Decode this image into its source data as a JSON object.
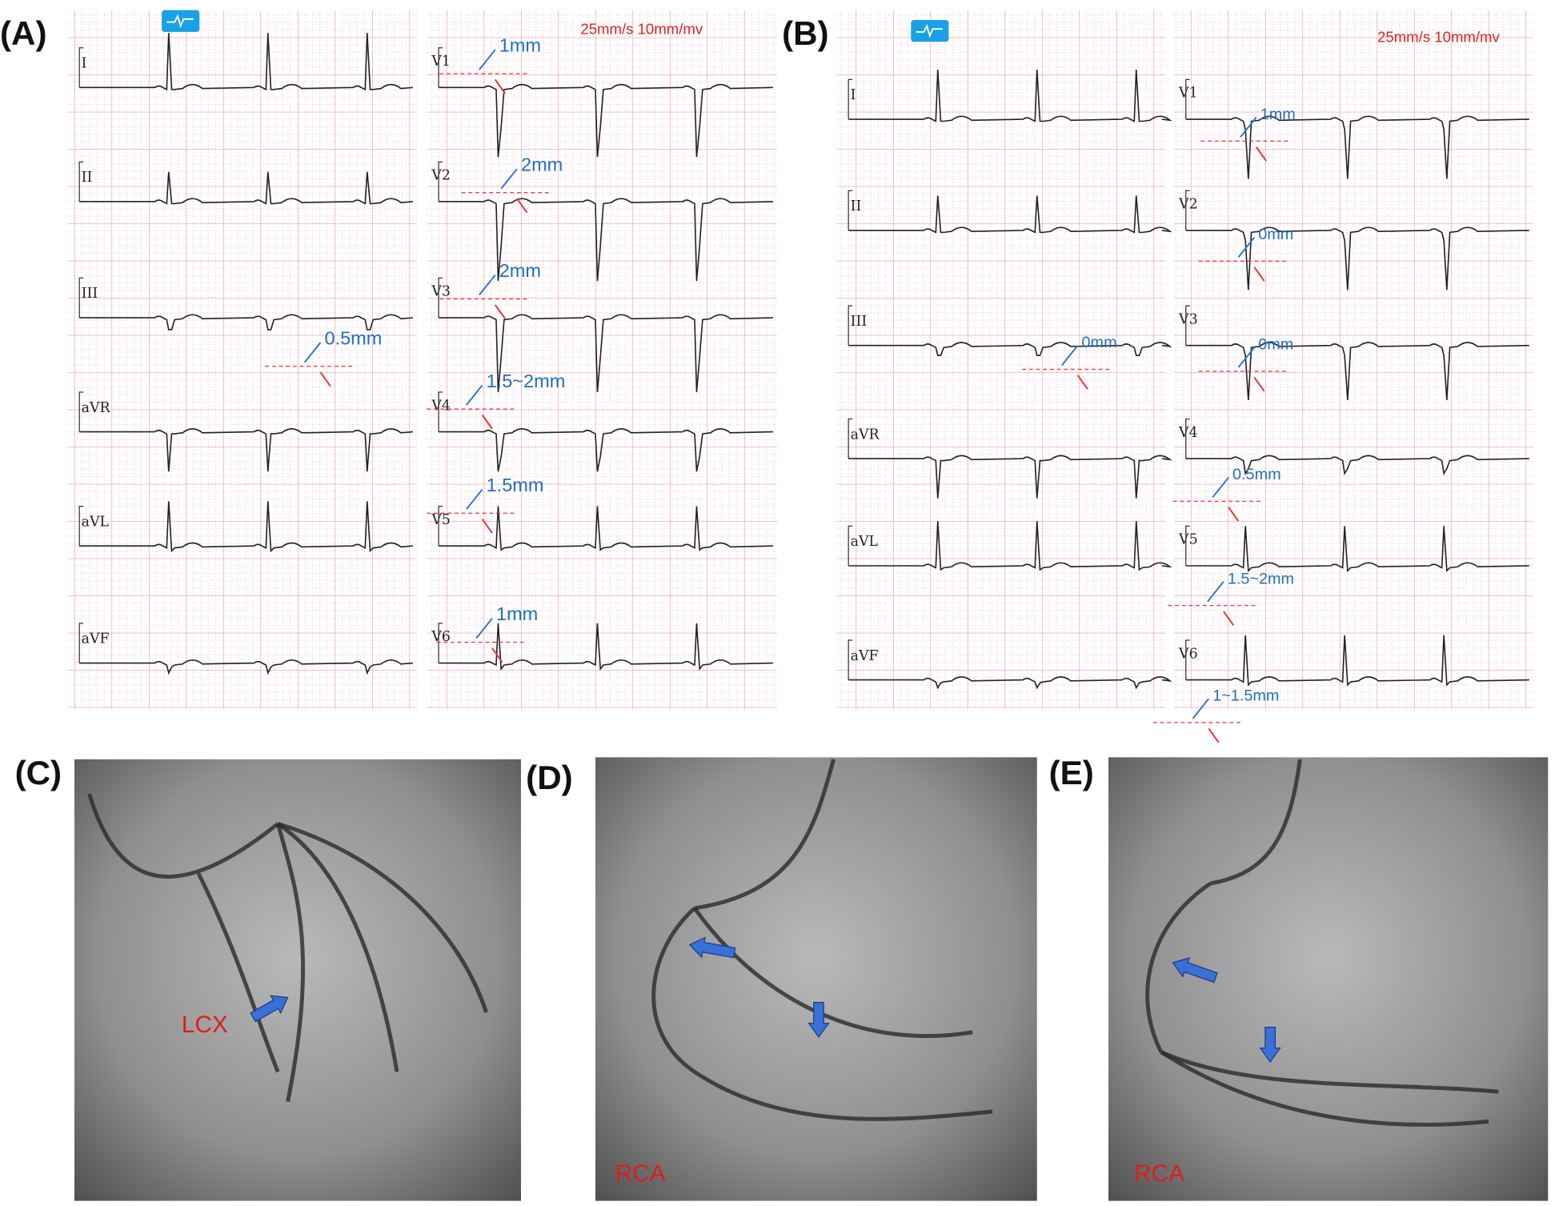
{
  "panels": [
    {
      "label": "(A)",
      "speed": "25mm/s 10mm/mv",
      "limb_leads": [
        "I",
        "II",
        "III",
        "aVR",
        "aVL",
        "aVF"
      ],
      "chest_leads": [
        "V1",
        "V2",
        "V3",
        "V4",
        "V5",
        "V6"
      ],
      "measurements": [
        "1mm",
        "2mm",
        "2mm",
        "1.5~2mm",
        "1.5mm",
        "1mm",
        "0.5mm"
      ]
    },
    {
      "label": "(B)",
      "speed": "25mm/s 10mm/mv",
      "limb_leads": [
        "I",
        "II",
        "III",
        "aVR",
        "aVL",
        "aVF"
      ],
      "chest_leads": [
        "V1",
        "V2",
        "V3",
        "V4",
        "V5",
        "V6"
      ],
      "measurements": [
        "1mm",
        "0mm",
        "0mm",
        "0.5mm",
        "1.5~2mm",
        "1~1.5mm",
        "0mm"
      ]
    }
  ],
  "angiograms": [
    {
      "label": "(C)",
      "vessel": "LCX"
    },
    {
      "label": "(D)",
      "vessel": "RCA"
    },
    {
      "label": "(E)",
      "vessel": "RCA"
    }
  ]
}
